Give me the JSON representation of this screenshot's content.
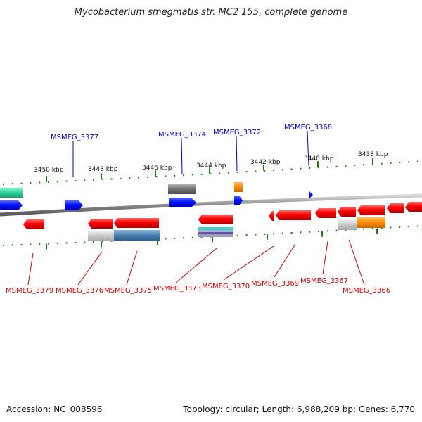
{
  "title": "Mycobacterium smegmatis str. MC2 155, complete genome",
  "footer": {
    "accession": "Accession: NC_008596",
    "topology": "Topology: circular; Length: 6,988,209 bp; Genes: 6,770"
  },
  "scale_labels": [
    "3450 kbp",
    "3448 kbp",
    "3446 kbp",
    "3444 kbp",
    "3442 kbp",
    "3440 kbp",
    "3438 kbp"
  ],
  "genes_top": [
    "MSMEG_3377",
    "MSMEG_3374",
    "MSMEG_3372",
    "MSMEG_3368"
  ],
  "genes_bottom": [
    "MSMEG_3379",
    "MSMEG_3376",
    "MSMEG_3375",
    "MSMEG_3373",
    "MSMEG_3370",
    "MSMEG_3369",
    "MSMEG_3367",
    "MSMEG_3366"
  ],
  "colors": {
    "forward_strand": "#0000ff",
    "reverse_strand": "#ff0000",
    "tick": "#1a7a1a",
    "backbone": "#888888",
    "forward_label": "#0000cc",
    "reverse_label": "#cc0000",
    "orange_feature": "#ff8c00",
    "teal_feature": "#2ecf9a",
    "gray_feature": "#777777"
  }
}
